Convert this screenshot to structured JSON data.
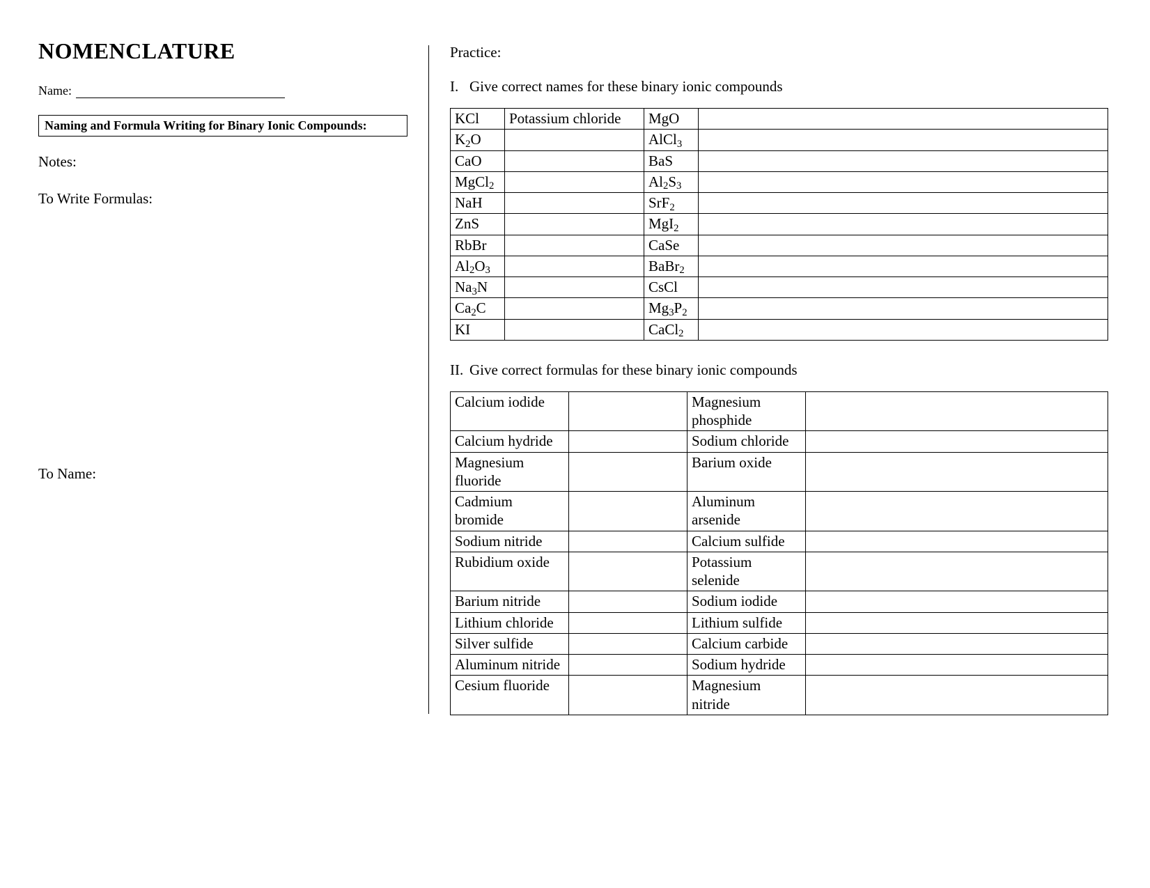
{
  "title": "NOMENCLATURE",
  "name_label": "Name:",
  "boxed_heading": "Naming and Formula Writing for Binary Ionic Compounds:",
  "notes_label": "Notes:",
  "to_write_label": "To Write Formulas:",
  "to_name_label": "To Name:",
  "practice_label": "Practice:",
  "section_I": {
    "numeral": "I.",
    "text": "Give correct names for these binary ionic compounds"
  },
  "section_II": {
    "numeral": "II.",
    "text": "Give correct formulas for these binary ionic compounds"
  },
  "table1": {
    "rows": [
      {
        "f1": "KCl",
        "a1": "Potassium chloride",
        "f2": "MgO",
        "a2": ""
      },
      {
        "f1": "K<sub>2</sub>O",
        "a1": "",
        "f2": "AlCl<sub>3</sub>",
        "a2": ""
      },
      {
        "f1": "CaO",
        "a1": "",
        "f2": "BaS",
        "a2": ""
      },
      {
        "f1": "MgCl<sub>2</sub>",
        "a1": "",
        "f2": "Al<sub>2</sub>S<sub>3</sub>",
        "a2": ""
      },
      {
        "f1": "NaH",
        "a1": "",
        "f2": "SrF<sub>2</sub>",
        "a2": ""
      },
      {
        "f1": "ZnS",
        "a1": "",
        "f2": "MgI<sub>2</sub>",
        "a2": ""
      },
      {
        "f1": "RbBr",
        "a1": "",
        "f2": "CaSe",
        "a2": ""
      },
      {
        "f1": "Al<sub>2</sub>O<sub>3</sub>",
        "a1": "",
        "f2": "BaBr<sub>2</sub>",
        "a2": ""
      },
      {
        "f1": "Na<sub>3</sub>N",
        "a1": "",
        "f2": "CsCl",
        "a2": ""
      },
      {
        "f1": "Ca<sub>2</sub>C",
        "a1": "",
        "f2": "Mg<sub>3</sub>P<sub>2</sub>",
        "a2": ""
      },
      {
        "f1": "KI",
        "a1": "",
        "f2": "CaCl<sub>2</sub>",
        "a2": ""
      }
    ]
  },
  "table2": {
    "rows": [
      {
        "n1": "Calcium iodide",
        "a1": "",
        "n2": "Magnesium phosphide",
        "a2": ""
      },
      {
        "n1": "Calcium hydride",
        "a1": "",
        "n2": "Sodium chloride",
        "a2": ""
      },
      {
        "n1": "Magnesium fluoride",
        "a1": "",
        "n2": "Barium oxide",
        "a2": ""
      },
      {
        "n1": "Cadmium bromide",
        "a1": "",
        "n2": "Aluminum arsenide",
        "a2": ""
      },
      {
        "n1": "Sodium nitride",
        "a1": "",
        "n2": "Calcium sulfide",
        "a2": ""
      },
      {
        "n1": "Rubidium oxide",
        "a1": "",
        "n2": "Potassium selenide",
        "a2": ""
      },
      {
        "n1": "Barium nitride",
        "a1": "",
        "n2": "Sodium iodide",
        "a2": ""
      },
      {
        "n1": "Lithium chloride",
        "a1": "",
        "n2": "Lithium sulfide",
        "a2": ""
      },
      {
        "n1": "Silver sulfide",
        "a1": "",
        "n2": "Calcium carbide",
        "a2": ""
      },
      {
        "n1": "Aluminum nitride",
        "a1": "",
        "n2": "Sodium hydride",
        "a2": ""
      },
      {
        "n1": "Cesium fluoride",
        "a1": "",
        "n2": "Magnesium nitride",
        "a2": ""
      }
    ]
  }
}
